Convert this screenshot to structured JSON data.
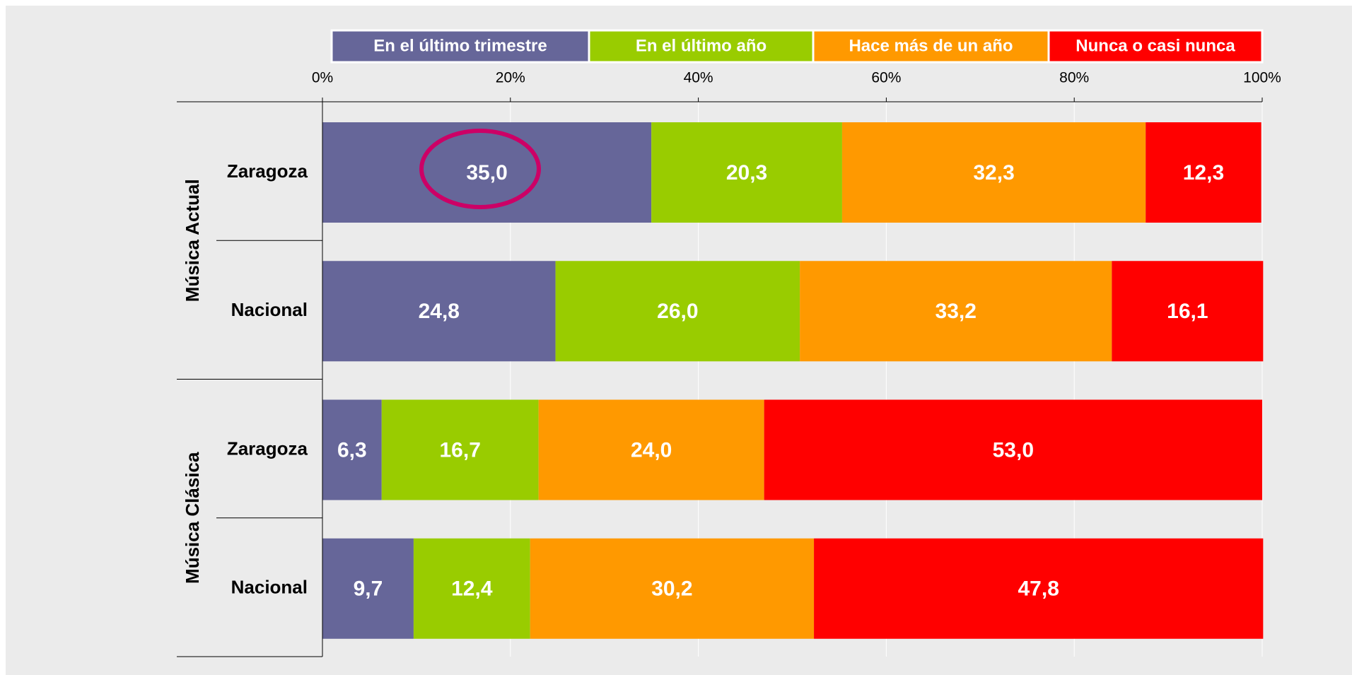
{
  "chart_data": {
    "type": "stacked-bar-horizontal",
    "groups": [
      "Música Actual",
      "Música Clásica"
    ],
    "categories": [
      "Zaragoza",
      "Nacional",
      "Zaragoza",
      "Nacional"
    ],
    "series": [
      {
        "name": "En el último trimestre",
        "color": "#666699",
        "values": [
          35.0,
          24.8,
          6.3,
          9.7
        ],
        "value_labels": [
          "35,0",
          "24,8",
          "6,3",
          "9,7"
        ]
      },
      {
        "name": "En el último año",
        "color": "#99cc00",
        "values": [
          20.3,
          26.0,
          16.7,
          12.4
        ],
        "value_labels": [
          "20,3",
          "26,0",
          "16,7",
          "12,4"
        ]
      },
      {
        "name": "Hace más de un año",
        "color": "#ff9900",
        "values": [
          32.3,
          33.2,
          24.0,
          30.2
        ],
        "value_labels": [
          "32,3",
          "33,2",
          "24,0",
          "30,2"
        ]
      },
      {
        "name": "Nunca o casi nunca",
        "color": "#ff0000",
        "values": [
          12.3,
          16.1,
          53.0,
          47.8
        ],
        "value_labels": [
          "12,3",
          "16,1",
          "53,0",
          "47,8"
        ]
      }
    ],
    "xlim": [
      0,
      100
    ],
    "xticks": [
      {
        "value": 0,
        "label": "0%"
      },
      {
        "value": 20,
        "label": "20%"
      },
      {
        "value": 40,
        "label": "40%"
      },
      {
        "value": 60,
        "label": "60%"
      },
      {
        "value": 80,
        "label": "80%"
      },
      {
        "value": 100,
        "label": "100%"
      }
    ],
    "grid": true
  }
}
